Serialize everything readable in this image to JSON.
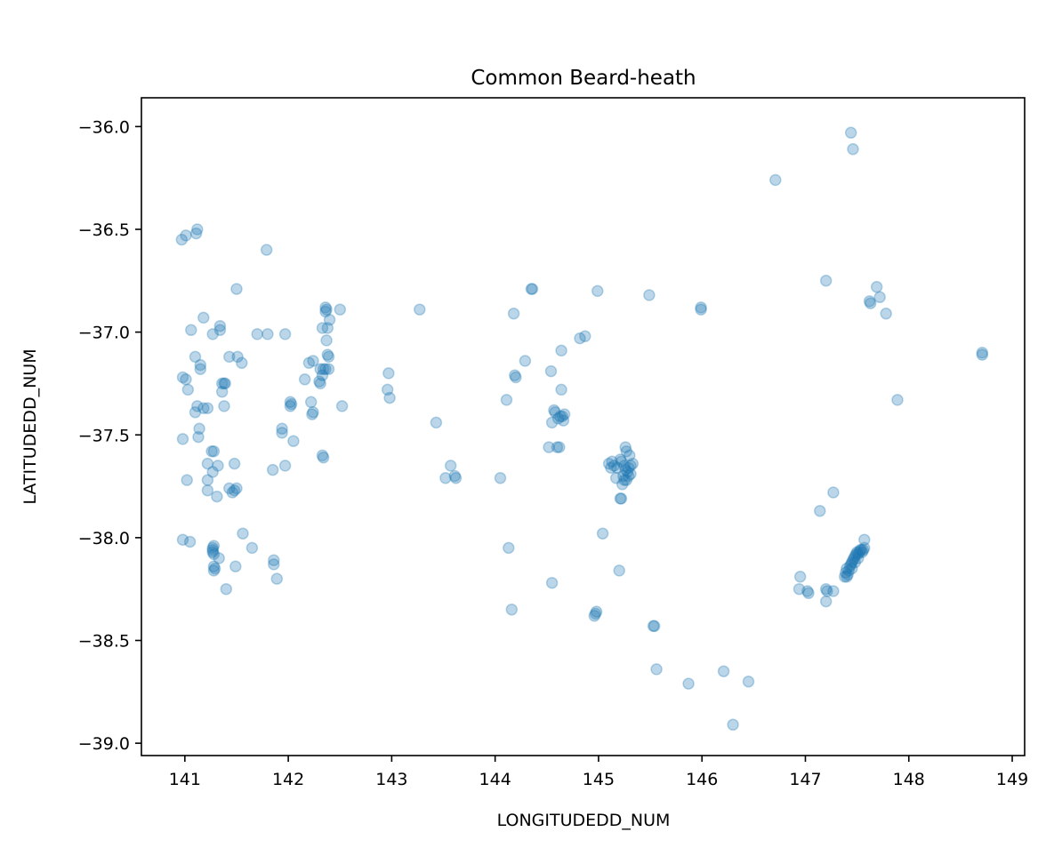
{
  "chart_data": {
    "type": "scatter",
    "title": "Common Beard-heath",
    "xlabel": "LONGITUDEDD_NUM",
    "ylabel": "LATITUDEDD_NUM",
    "xlim": [
      140.58,
      149.12
    ],
    "ylim": [
      -39.06,
      -35.86
    ],
    "xticks": [
      141,
      142,
      143,
      144,
      145,
      146,
      147,
      148,
      149
    ],
    "yticks": [
      -36.0,
      -36.5,
      -37.0,
      -37.5,
      -38.0,
      -38.5,
      -39.0
    ],
    "xtick_labels": [
      "141",
      "142",
      "143",
      "144",
      "145",
      "146",
      "147",
      "148",
      "149"
    ],
    "ytick_labels": [
      "−36.0",
      "−36.5",
      "−37.0",
      "−37.5",
      "−38.0",
      "−38.5",
      "−39.0"
    ],
    "marker_color": "#1f77b4",
    "marker_alpha": 0.3,
    "grid": false,
    "legend": false,
    "points": [
      [
        140.97,
        -36.55
      ],
      [
        141.01,
        -36.53
      ],
      [
        141.12,
        -36.5
      ],
      [
        141.11,
        -36.52
      ],
      [
        141.06,
        -36.99
      ],
      [
        141.18,
        -36.93
      ],
      [
        141.27,
        -37.01
      ],
      [
        141.34,
        -36.97
      ],
      [
        141.34,
        -36.99
      ],
      [
        140.98,
        -37.22
      ],
      [
        141.01,
        -37.23
      ],
      [
        141.1,
        -37.12
      ],
      [
        141.15,
        -37.16
      ],
      [
        141.15,
        -37.18
      ],
      [
        141.03,
        -37.28
      ],
      [
        141.12,
        -37.36
      ],
      [
        141.1,
        -37.39
      ],
      [
        141.18,
        -37.37
      ],
      [
        141.22,
        -37.37
      ],
      [
        141.36,
        -37.25
      ],
      [
        141.38,
        -37.25
      ],
      [
        141.39,
        -37.25
      ],
      [
        141.36,
        -37.29
      ],
      [
        141.38,
        -37.36
      ],
      [
        141.43,
        -37.12
      ],
      [
        141.51,
        -37.12
      ],
      [
        141.55,
        -37.15
      ],
      [
        140.98,
        -37.52
      ],
      [
        141.14,
        -37.47
      ],
      [
        141.13,
        -37.51
      ],
      [
        141.02,
        -37.72
      ],
      [
        141.22,
        -37.64
      ],
      [
        141.26,
        -37.58
      ],
      [
        141.28,
        -37.58
      ],
      [
        141.27,
        -37.68
      ],
      [
        141.32,
        -37.65
      ],
      [
        141.22,
        -37.72
      ],
      [
        141.22,
        -37.77
      ],
      [
        141.31,
        -37.8
      ],
      [
        141.43,
        -37.76
      ],
      [
        141.46,
        -37.78
      ],
      [
        141.48,
        -37.77
      ],
      [
        141.5,
        -37.76
      ],
      [
        141.48,
        -37.64
      ],
      [
        140.98,
        -38.01
      ],
      [
        141.05,
        -38.02
      ],
      [
        141.27,
        -38.05
      ],
      [
        141.28,
        -38.04
      ],
      [
        141.27,
        -38.07
      ],
      [
        141.27,
        -38.06
      ],
      [
        141.28,
        -38.08
      ],
      [
        141.33,
        -38.1
      ],
      [
        141.28,
        -38.14
      ],
      [
        141.29,
        -38.15
      ],
      [
        141.28,
        -38.16
      ],
      [
        141.4,
        -38.25
      ],
      [
        141.49,
        -38.14
      ],
      [
        141.56,
        -37.98
      ],
      [
        141.65,
        -38.05
      ],
      [
        141.5,
        -36.79
      ],
      [
        141.7,
        -37.01
      ],
      [
        141.8,
        -37.01
      ],
      [
        141.79,
        -36.6
      ],
      [
        141.97,
        -37.01
      ],
      [
        142.02,
        -37.34
      ],
      [
        142.03,
        -37.35
      ],
      [
        142.02,
        -37.36
      ],
      [
        141.94,
        -37.47
      ],
      [
        141.94,
        -37.49
      ],
      [
        142.05,
        -37.53
      ],
      [
        141.85,
        -37.67
      ],
      [
        141.97,
        -37.65
      ],
      [
        141.86,
        -38.11
      ],
      [
        141.86,
        -38.13
      ],
      [
        141.89,
        -38.2
      ],
      [
        142.36,
        -36.88
      ],
      [
        142.37,
        -36.89
      ],
      [
        142.36,
        -36.9
      ],
      [
        142.4,
        -36.94
      ],
      [
        142.33,
        -36.98
      ],
      [
        142.38,
        -36.98
      ],
      [
        142.37,
        -37.04
      ],
      [
        142.5,
        -36.89
      ],
      [
        142.38,
        -37.11
      ],
      [
        142.39,
        -37.12
      ],
      [
        142.24,
        -37.14
      ],
      [
        142.2,
        -37.15
      ],
      [
        142.31,
        -37.18
      ],
      [
        142.34,
        -37.18
      ],
      [
        142.36,
        -37.18
      ],
      [
        142.39,
        -37.18
      ],
      [
        142.33,
        -37.21
      ],
      [
        142.16,
        -37.23
      ],
      [
        142.3,
        -37.24
      ],
      [
        142.31,
        -37.25
      ],
      [
        142.22,
        -37.34
      ],
      [
        142.24,
        -37.39
      ],
      [
        142.23,
        -37.4
      ],
      [
        142.52,
        -37.36
      ],
      [
        142.33,
        -37.6
      ],
      [
        142.34,
        -37.61
      ],
      [
        142.97,
        -37.2
      ],
      [
        142.96,
        -37.28
      ],
      [
        142.98,
        -37.32
      ],
      [
        143.27,
        -36.89
      ],
      [
        143.43,
        -37.44
      ],
      [
        143.52,
        -37.71
      ],
      [
        143.57,
        -37.65
      ],
      [
        143.61,
        -37.7
      ],
      [
        143.62,
        -37.71
      ],
      [
        144.05,
        -37.71
      ],
      [
        144.11,
        -37.33
      ],
      [
        144.13,
        -38.05
      ],
      [
        144.16,
        -38.35
      ],
      [
        144.19,
        -37.21
      ],
      [
        144.2,
        -37.22
      ],
      [
        144.18,
        -36.91
      ],
      [
        144.29,
        -37.14
      ],
      [
        144.35,
        -36.79
      ],
      [
        144.36,
        -36.79
      ],
      [
        144.54,
        -37.19
      ],
      [
        144.64,
        -37.09
      ],
      [
        144.64,
        -37.28
      ],
      [
        144.82,
        -37.03
      ],
      [
        144.87,
        -37.02
      ],
      [
        144.99,
        -36.8
      ],
      [
        144.52,
        -37.56
      ],
      [
        144.55,
        -38.22
      ],
      [
        144.57,
        -37.38
      ],
      [
        144.58,
        -37.39
      ],
      [
        144.55,
        -37.44
      ],
      [
        144.61,
        -37.42
      ],
      [
        144.63,
        -37.41
      ],
      [
        144.65,
        -37.41
      ],
      [
        144.66,
        -37.43
      ],
      [
        144.67,
        -37.4
      ],
      [
        144.6,
        -37.56
      ],
      [
        144.62,
        -37.56
      ],
      [
        144.97,
        -38.37
      ],
      [
        144.96,
        -38.38
      ],
      [
        144.98,
        -38.36
      ],
      [
        145.04,
        -37.98
      ],
      [
        145.1,
        -37.64
      ],
      [
        145.12,
        -37.66
      ],
      [
        145.13,
        -37.63
      ],
      [
        145.15,
        -37.65
      ],
      [
        145.18,
        -37.66
      ],
      [
        145.17,
        -37.71
      ],
      [
        145.21,
        -37.62
      ],
      [
        145.22,
        -37.63
      ],
      [
        145.25,
        -37.65
      ],
      [
        145.26,
        -37.67
      ],
      [
        145.28,
        -37.68
      ],
      [
        145.29,
        -37.66
      ],
      [
        145.31,
        -37.65
      ],
      [
        145.33,
        -37.64
      ],
      [
        145.26,
        -37.56
      ],
      [
        145.27,
        -37.58
      ],
      [
        145.3,
        -37.6
      ],
      [
        145.24,
        -37.7
      ],
      [
        145.25,
        -37.72
      ],
      [
        145.27,
        -37.72
      ],
      [
        145.29,
        -37.7
      ],
      [
        145.31,
        -37.69
      ],
      [
        145.23,
        -37.74
      ],
      [
        145.21,
        -37.81
      ],
      [
        145.22,
        -37.81
      ],
      [
        145.2,
        -38.16
      ],
      [
        145.53,
        -38.43
      ],
      [
        145.54,
        -38.43
      ],
      [
        145.56,
        -38.64
      ],
      [
        145.49,
        -36.82
      ],
      [
        145.87,
        -38.71
      ],
      [
        145.99,
        -36.88
      ],
      [
        145.99,
        -36.89
      ],
      [
        146.21,
        -38.65
      ],
      [
        146.3,
        -38.91
      ],
      [
        146.45,
        -38.7
      ],
      [
        146.71,
        -36.26
      ],
      [
        147.44,
        -36.03
      ],
      [
        147.46,
        -36.11
      ],
      [
        147.2,
        -36.75
      ],
      [
        147.69,
        -36.78
      ],
      [
        147.72,
        -36.83
      ],
      [
        147.62,
        -36.85
      ],
      [
        147.63,
        -36.86
      ],
      [
        147.78,
        -36.91
      ],
      [
        147.89,
        -37.33
      ],
      [
        147.14,
        -37.87
      ],
      [
        147.27,
        -37.78
      ],
      [
        146.95,
        -38.19
      ],
      [
        146.94,
        -38.25
      ],
      [
        147.02,
        -38.26
      ],
      [
        147.03,
        -38.27
      ],
      [
        147.2,
        -38.25
      ],
      [
        147.21,
        -38.26
      ],
      [
        147.2,
        -38.31
      ],
      [
        147.27,
        -38.26
      ],
      [
        147.57,
        -38.01
      ],
      [
        147.38,
        -38.19
      ],
      [
        147.39,
        -38.17
      ],
      [
        147.4,
        -38.15
      ],
      [
        147.41,
        -38.18
      ],
      [
        147.42,
        -38.16
      ],
      [
        147.43,
        -38.14
      ],
      [
        147.44,
        -38.13
      ],
      [
        147.45,
        -38.12
      ],
      [
        147.46,
        -38.11
      ],
      [
        147.47,
        -38.1
      ],
      [
        147.48,
        -38.09
      ],
      [
        147.49,
        -38.08
      ],
      [
        147.5,
        -38.07
      ],
      [
        147.51,
        -38.08
      ],
      [
        147.52,
        -38.07
      ],
      [
        147.53,
        -38.06
      ],
      [
        147.54,
        -38.06
      ],
      [
        147.55,
        -38.07
      ],
      [
        147.56,
        -38.06
      ],
      [
        147.57,
        -38.05
      ],
      [
        147.45,
        -38.15
      ],
      [
        147.48,
        -38.12
      ],
      [
        147.51,
        -38.1
      ],
      [
        147.4,
        -38.19
      ],
      [
        148.71,
        -37.1
      ],
      [
        148.71,
        -37.11
      ]
    ]
  }
}
